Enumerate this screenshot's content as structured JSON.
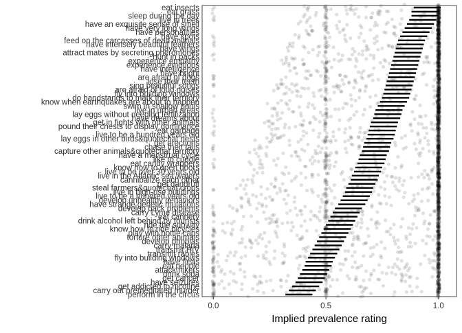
{
  "chart_data": {
    "type": "scatter",
    "xlabel": "Implied prevalence rating",
    "ylabel": "",
    "xlim": [
      -0.05,
      1.08
    ],
    "xticks": [
      {
        "value": 0.0,
        "label": "0.0"
      },
      {
        "value": 0.5,
        "label": "0.5"
      },
      {
        "value": 1.0,
        "label": "1.0"
      }
    ],
    "grid": false,
    "legend": "none",
    "colors": {
      "points": "#000000",
      "ci": "#000000",
      "frame": "#444444",
      "text": "#333333"
    },
    "categories": [
      "eat insects",
      "eat grass",
      "sleep during the day",
      "live in trees",
      "have an exquisite sense of smell",
      "have very long wings",
      "have personalities",
      "have spots",
      "feed on the carcasses of dead animals",
      "have intensely beautiful feathers",
      "have wings",
      "attract mates by secreting pheromones",
      "hunt in packs",
      "experience empathy",
      "experience emotions",
      "have intelligence",
      "have bright",
      "are afraid of dogs",
      "lose their teeth",
      "sing beautiful songs",
      "are afraid of loud noises",
      "fly into building windows",
      "do handstands to mark their territory",
      "know when earthquakes are about to happen",
      "swim in shallow pools",
      "live in urban areas",
      "lay eggs without needing fertilization",
      "have dreams about",
      "get in fights with other animals",
      "pound their chests to display dominance",
      "eat garbage",
      "live to be a hundred years old",
      "lay eggs in other birds&quotechat nests",
      "get erections",
      "chase their tails",
      "capture other animals&quotechat territory",
      "have a menstrual cycle",
      "like to cuddle",
      "eat candy wrappers",
      "know how to open doors",
      "live to be over 30 years old",
      "live in the Atlantic sea waters",
      "cannibalize each other",
      "get dandruff",
      "steal farmers&quotechat crops",
      "live in high-rise buildings",
      "live to be a hundred years old",
      "develop unhealthy behaviors",
      "have strange genetic mutations",
      "develop back problems",
      "carry Lyme disease",
      "eat cannery",
      "drink alcohol left behind by tourists",
      "ride the subway",
      "know how to ride bicycles",
      "play with bottle caps",
      "torture other animals",
      "develop phobias",
      "carry malaria",
      "transmit HIV",
      "transmit rabies",
      "fly into building windows",
      "have fleas",
      "eat people",
      "attack hikers",
      "drink soda",
      "get cancer",
      "have seizures",
      "get addicted to nicotine",
      "carry out premeditated murder",
      "perform in the circus"
    ],
    "means": [
      0.95,
      0.94,
      0.94,
      0.93,
      0.92,
      0.91,
      0.9,
      0.89,
      0.88,
      0.875,
      0.87,
      0.865,
      0.86,
      0.855,
      0.85,
      0.845,
      0.84,
      0.835,
      0.83,
      0.825,
      0.82,
      0.815,
      0.81,
      0.8,
      0.79,
      0.78,
      0.775,
      0.77,
      0.76,
      0.755,
      0.75,
      0.745,
      0.74,
      0.73,
      0.725,
      0.72,
      0.71,
      0.705,
      0.7,
      0.69,
      0.685,
      0.675,
      0.67,
      0.66,
      0.65,
      0.645,
      0.635,
      0.625,
      0.615,
      0.6,
      0.59,
      0.58,
      0.57,
      0.56,
      0.55,
      0.54,
      0.53,
      0.52,
      0.51,
      0.5,
      0.49,
      0.48,
      0.47,
      0.465,
      0.455,
      0.445,
      0.435,
      0.425,
      0.41,
      0.395,
      0.38
    ],
    "ci_halfwidth": 0.06,
    "points_per_item": 40,
    "point_alpha": 0.12
  }
}
